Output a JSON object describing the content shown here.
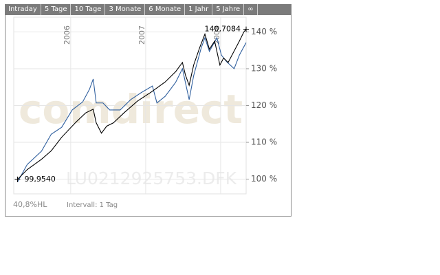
{
  "tabs": [
    "Intraday",
    "5 Tage",
    "10 Tage",
    "3 Monate",
    "6 Monate",
    "1 Jahr",
    "5 Jahre",
    "∞"
  ],
  "chart_data": {
    "type": "line",
    "watermark": "comdirect",
    "isin": "LU0212925753.DFK",
    "xlim": [
      2005.24,
      2008.34
    ],
    "xticks": [
      2006,
      2007,
      2008
    ],
    "ylim": [
      96,
      144
    ],
    "yticks": [
      {
        "value": 100,
        "label": "100 %"
      },
      {
        "value": 110,
        "label": "110 %"
      },
      {
        "value": 120,
        "label": "120 %"
      },
      {
        "value": 130,
        "label": "130 %"
      },
      {
        "value": 140,
        "label": "140 %"
      }
    ],
    "grid": true,
    "series": [
      {
        "color": "#2f5f9e",
        "x": [
          2005.29,
          2005.42,
          2005.61,
          2005.74,
          2005.88,
          2006.02,
          2006.16,
          2006.25,
          2006.3,
          2006.34,
          2006.43,
          2006.52,
          2006.66,
          2006.8,
          2006.94,
          2007.09,
          2007.15,
          2007.26,
          2007.4,
          2007.49,
          2007.58,
          2007.64,
          2007.74,
          2007.79,
          2007.85,
          2007.95,
          2008.01,
          2008.08,
          2008.18,
          2008.25,
          2008.34
        ],
        "values": [
          99.2,
          104.0,
          107.6,
          112.2,
          114.1,
          118.8,
          121.0,
          124.4,
          127.2,
          120.7,
          120.7,
          118.8,
          118.8,
          121.6,
          123.5,
          125.3,
          120.7,
          122.5,
          126.3,
          130.0,
          121.6,
          128.1,
          135.6,
          138.4,
          134.7,
          138.4,
          133.7,
          131.9,
          130.0,
          133.7,
          137.1
        ]
      },
      {
        "color": "#000000",
        "x": [
          2005.29,
          2005.42,
          2005.61,
          2005.74,
          2005.88,
          2006.07,
          2006.2,
          2006.3,
          2006.34,
          2006.41,
          2006.48,
          2006.57,
          2006.71,
          2006.89,
          2007.07,
          2007.26,
          2007.4,
          2007.49,
          2007.53,
          2007.58,
          2007.64,
          2007.72,
          2007.79,
          2007.85,
          2007.92,
          2007.99,
          2008.04,
          2008.1,
          2008.18,
          2008.25,
          2008.31,
          2008.34
        ],
        "values": [
          99.954,
          102.6,
          105.4,
          107.7,
          111.4,
          115.5,
          118.0,
          119.0,
          115.3,
          112.5,
          114.4,
          115.3,
          118.0,
          121.2,
          123.6,
          126.4,
          129.2,
          131.7,
          128.3,
          125.5,
          131.0,
          135.7,
          139.4,
          135.3,
          137.5,
          131.0,
          132.9,
          131.7,
          134.8,
          137.5,
          140.0,
          140.7084
        ]
      }
    ],
    "annotations": [
      {
        "x": 2005.29,
        "value": 99.954,
        "label": "99,9540"
      },
      {
        "x": 2008.34,
        "value": 140.7084,
        "label": "140,7084"
      }
    ],
    "footer": {
      "hl": "40,8%HL",
      "interval": "Intervall: 1 Tag"
    }
  }
}
